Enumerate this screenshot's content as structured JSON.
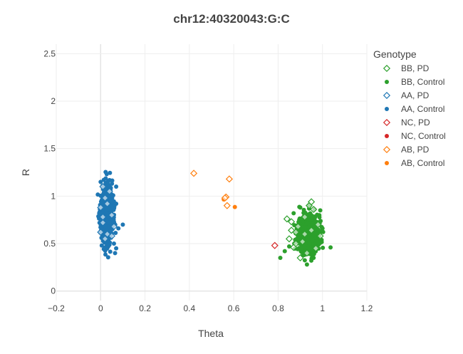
{
  "chart_data": {
    "type": "scatter",
    "title": "chr12:40320043:G:C",
    "xlabel": "Theta",
    "ylabel": "R",
    "xlim": [
      -0.2,
      1.2
    ],
    "ylim": [
      -0.1,
      2.6
    ],
    "xticks": [
      {
        "value": -0.2,
        "label": "−0.2"
      },
      {
        "value": 0,
        "label": "0"
      },
      {
        "value": 0.2,
        "label": "0.2"
      },
      {
        "value": 0.4,
        "label": "0.4"
      },
      {
        "value": 0.6,
        "label": "0.6"
      },
      {
        "value": 0.8,
        "label": "0.8"
      },
      {
        "value": 1,
        "label": "1"
      },
      {
        "value": 1.2,
        "label": "1.2"
      }
    ],
    "yticks": [
      {
        "value": 0,
        "label": "0"
      },
      {
        "value": 0.5,
        "label": "0.5"
      },
      {
        "value": 1,
        "label": "1"
      },
      {
        "value": 1.5,
        "label": "1.5"
      },
      {
        "value": 2,
        "label": "2"
      },
      {
        "value": 2.5,
        "label": "2.5"
      }
    ],
    "grid": true,
    "legend_title": "Genotype",
    "legend_position": "right",
    "series": [
      {
        "name": "BB, PD",
        "color": "#2ca02c",
        "marker": "diamond-open",
        "points": [
          [
            0.84,
            0.76
          ],
          [
            0.86,
            0.73
          ],
          [
            0.88,
            0.62
          ],
          [
            0.85,
            0.55
          ],
          [
            0.87,
            0.46
          ],
          [
            0.9,
            0.35
          ],
          [
            0.92,
            0.78
          ],
          [
            0.94,
            0.9
          ],
          [
            0.95,
            0.94
          ],
          [
            0.96,
            0.86
          ],
          [
            0.98,
            0.7
          ],
          [
            0.99,
            0.58
          ],
          [
            0.97,
            0.45
          ],
          [
            0.93,
            0.4
          ],
          [
            0.89,
            0.68
          ],
          [
            0.91,
            0.52
          ],
          [
            0.86,
            0.64
          ],
          [
            0.95,
            0.64
          ],
          [
            0.92,
            0.6
          ],
          [
            0.88,
            0.5
          ]
        ]
      },
      {
        "name": "BB, Control",
        "color": "#2ca02c",
        "marker": "circle",
        "generate": {
          "cx": 0.935,
          "cy": 0.61,
          "sx": 0.022,
          "sy": 0.095,
          "n": 850,
          "seed": 11
        },
        "points": [
          [
            0.81,
            0.35
          ],
          [
            0.93,
            0.28
          ],
          [
            0.83,
            0.42
          ],
          [
            0.99,
            0.85
          ],
          [
            0.9,
            0.88
          ],
          [
            0.87,
            0.82
          ],
          [
            0.99,
            0.52
          ],
          [
            1.0,
            0.66
          ],
          [
            0.85,
            0.47
          ],
          [
            0.96,
            0.35
          ]
        ]
      },
      {
        "name": "AA, PD",
        "color": "#1f77b4",
        "marker": "diamond-open",
        "points": [
          [
            0.01,
            1.1
          ],
          [
            0.02,
            0.98
          ],
          [
            0.0,
            0.88
          ],
          [
            0.01,
            0.72
          ],
          [
            0.03,
            0.6
          ],
          [
            0.02,
            0.55
          ],
          [
            0.04,
            1.05
          ],
          [
            0.05,
            0.8
          ],
          [
            0.06,
            0.68
          ],
          [
            0.0,
            0.62
          ],
          [
            0.03,
            0.92
          ],
          [
            0.05,
            0.58
          ],
          [
            0.01,
            0.78
          ]
        ]
      },
      {
        "name": "AA, Control",
        "color": "#1f77b4",
        "marker": "circle",
        "generate": {
          "cx": 0.028,
          "cy": 0.8,
          "sx": 0.013,
          "sy": 0.14,
          "n": 900,
          "seed": 23
        },
        "points": [
          [
            0.07,
            0.45
          ],
          [
            0.065,
            0.4
          ],
          [
            0.1,
            0.7
          ],
          [
            0.08,
            0.66
          ],
          [
            0.0,
            1.15
          ],
          [
            0.07,
            1.1
          ],
          [
            0.005,
            0.48
          ],
          [
            0.02,
            0.46
          ],
          [
            0.06,
            0.5
          ],
          [
            0.07,
            0.92
          ]
        ]
      },
      {
        "name": "NC, PD",
        "color": "#d62728",
        "marker": "diamond-open",
        "points": [
          [
            0.785,
            0.48
          ]
        ]
      },
      {
        "name": "NC, Control",
        "color": "#d62728",
        "marker": "circle",
        "points": []
      },
      {
        "name": "AB, PD",
        "color": "#ff7f0e",
        "marker": "diamond-open",
        "points": [
          [
            0.42,
            1.24
          ],
          [
            0.58,
            1.18
          ],
          [
            0.565,
            0.99
          ],
          [
            0.57,
            0.9
          ],
          [
            0.56,
            0.98
          ]
        ]
      },
      {
        "name": "AB, Control",
        "color": "#ff7f0e",
        "marker": "circle",
        "points": [
          [
            0.555,
            0.965
          ],
          [
            0.605,
            0.885
          ]
        ]
      }
    ]
  }
}
